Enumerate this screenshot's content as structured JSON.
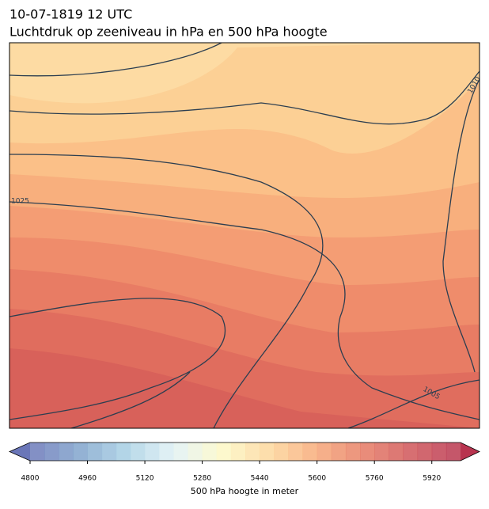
{
  "header": {
    "title": "10-07-1819 12 UTC",
    "subtitle": "Luchtdruk op zeeniveau in hPa en 500 hPa hoogte"
  },
  "map": {
    "contour_labels": [
      "1025",
      "1010",
      "1005"
    ]
  },
  "colorbar": {
    "range": [
      4800,
      6000
    ],
    "ticks": [
      4800,
      4960,
      5120,
      5280,
      5440,
      5600,
      5760,
      5920
    ],
    "label": "500 hPa hoogte in meter"
  }
}
